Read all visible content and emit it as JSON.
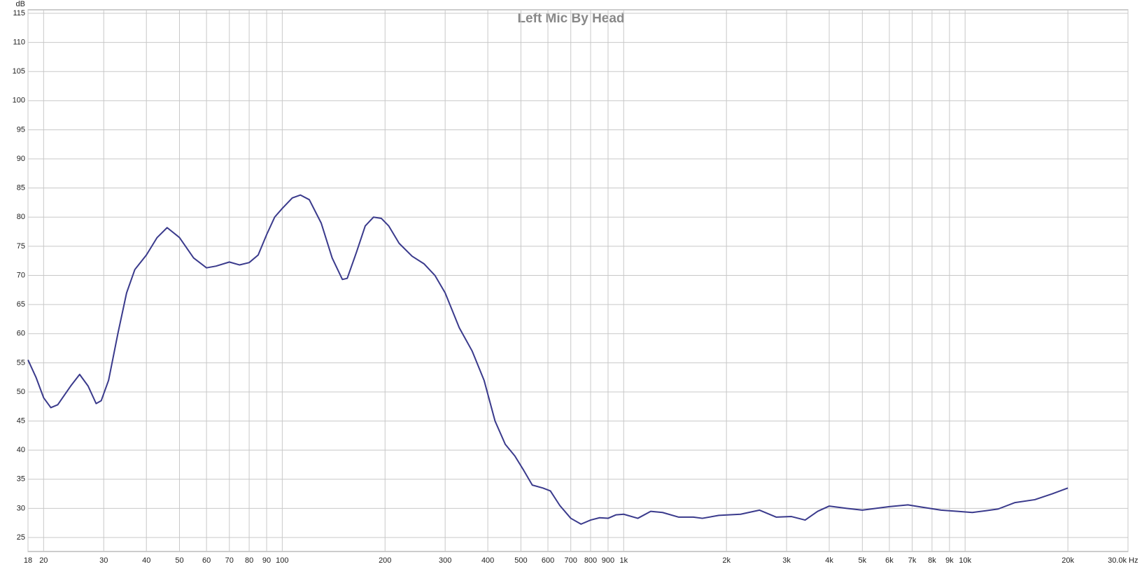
{
  "chart_data": {
    "type": "line",
    "title": "Left Mic By Head",
    "y_unit": "dB",
    "x_unit": "Hz",
    "x": [
      18,
      19,
      20,
      21,
      22,
      24,
      25.5,
      27,
      28.5,
      29.5,
      31,
      33,
      35,
      37,
      40,
      43,
      46,
      50,
      55,
      60,
      64,
      70,
      75,
      80,
      85,
      90,
      95,
      100,
      107,
      113,
      120,
      130,
      140,
      150,
      155,
      165,
      175,
      185,
      195,
      205,
      220,
      240,
      260,
      280,
      300,
      330,
      360,
      390,
      420,
      450,
      480,
      510,
      540,
      580,
      610,
      650,
      700,
      750,
      800,
      850,
      900,
      950,
      1000,
      1100,
      1200,
      1300,
      1450,
      1600,
      1700,
      1900,
      2200,
      2500,
      2800,
      3100,
      3400,
      3700,
      4000,
      4500,
      5000,
      6000,
      6800,
      7500,
      8500,
      9500,
      10500,
      11500,
      12500,
      14000,
      16000,
      18000,
      20000
    ],
    "values": [
      55.5,
      52.5,
      49,
      47.3,
      47.8,
      51,
      53,
      51,
      48,
      48.5,
      52,
      60,
      67,
      71,
      73.5,
      76.5,
      78.2,
      76.5,
      73,
      71.3,
      71.6,
      72.3,
      71.8,
      72.2,
      73.5,
      77,
      80,
      81.5,
      83.3,
      83.8,
      83,
      79,
      73,
      69.3,
      69.5,
      74,
      78.5,
      80,
      79.8,
      78.5,
      75.5,
      73.3,
      72,
      70,
      67,
      61,
      57,
      52,
      45,
      41,
      39,
      36.5,
      34,
      33.5,
      33,
      30.5,
      28.3,
      27.3,
      28,
      28.4,
      28.3,
      28.9,
      29,
      28.3,
      29.5,
      29.3,
      28.5,
      28.5,
      28.3,
      28.8,
      29,
      29.7,
      28.5,
      28.6,
      28,
      29.5,
      30.4,
      30,
      29.7,
      30.3,
      30.6,
      30.2,
      29.7,
      29.5,
      29.3,
      29.6,
      29.9,
      31,
      31.5,
      32.5,
      33.5
    ],
    "color": "#3a3a8c",
    "log_x": true,
    "grid": true,
    "xlim": [
      18,
      30000
    ],
    "ylim": [
      22.6,
      115.6
    ],
    "xticks": [
      18,
      20,
      30,
      40,
      50,
      60,
      70,
      80,
      90,
      100,
      200,
      300,
      400,
      500,
      600,
      700,
      800,
      900,
      {
        "value": 1000,
        "label": "1k"
      },
      {
        "value": 2000,
        "label": "2k"
      },
      {
        "value": 3000,
        "label": "3k"
      },
      {
        "value": 4000,
        "label": "4k"
      },
      {
        "value": 5000,
        "label": "5k"
      },
      {
        "value": 6000,
        "label": "6k"
      },
      {
        "value": 7000,
        "label": "7k"
      },
      {
        "value": 8000,
        "label": "8k"
      },
      {
        "value": 9000,
        "label": "9k"
      },
      {
        "value": 10000,
        "label": "10k"
      },
      {
        "value": 20000,
        "label": "20k"
      },
      {
        "value": 30000,
        "label": "30.0k"
      }
    ],
    "yticks": [
      25,
      30,
      35,
      40,
      45,
      50,
      55,
      60,
      65,
      70,
      75,
      80,
      85,
      90,
      95,
      100,
      105,
      110,
      115
    ]
  }
}
